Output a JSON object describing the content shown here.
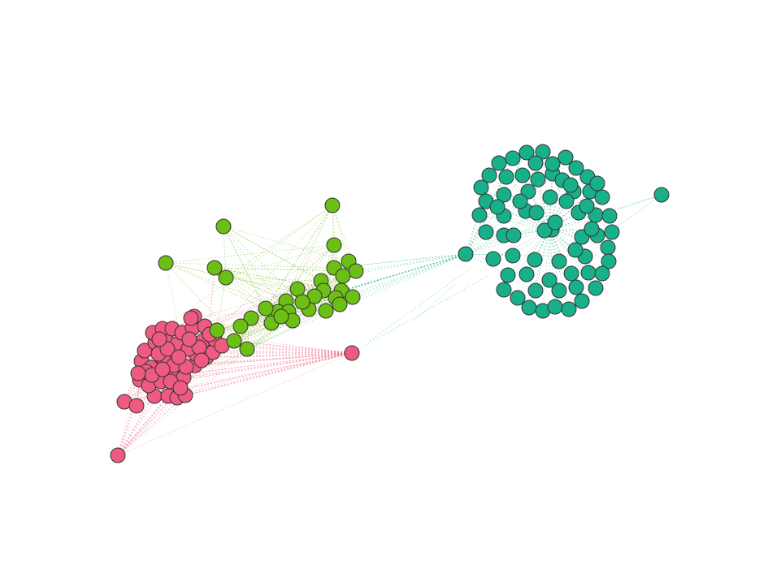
{
  "graph": {
    "clusters": [
      {
        "name": "pink",
        "color": "#ef5a80",
        "node_count": 52
      },
      {
        "name": "green",
        "color": "#6cbf14",
        "node_count": 33
      },
      {
        "name": "teal",
        "color": "#18b08a",
        "node_count": 73
      }
    ],
    "node_stroke": "#333333",
    "background": "#ffffff"
  }
}
